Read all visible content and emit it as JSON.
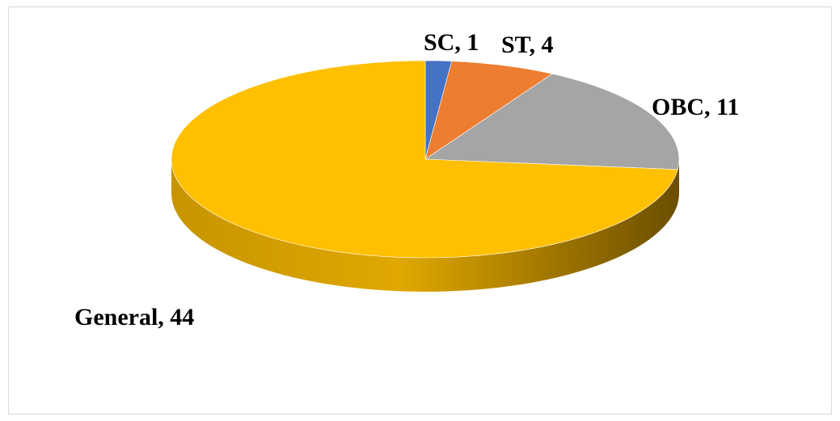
{
  "chart_data": {
    "type": "pie",
    "title": "",
    "style": "3d",
    "categories": [
      "SC",
      "ST",
      "OBC",
      "General"
    ],
    "values": [
      1,
      4,
      11,
      44
    ],
    "colors": [
      "#4472C4",
      "#ED7D31",
      "#A5A5A5",
      "#FFC000"
    ],
    "labels": [
      "SC, 1",
      "ST, 4",
      "OBC, 11",
      "General, 44"
    ],
    "legend": "none"
  }
}
